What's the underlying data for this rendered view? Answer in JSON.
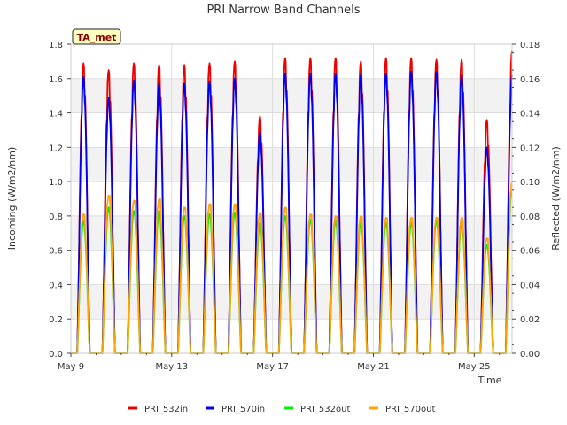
{
  "chart_data": {
    "type": "line",
    "title": "PRI Narrow Band Channels",
    "xlabel": "Time",
    "ylabel_left": "Incoming (W/m2/nm)",
    "ylabel_right": "Reflected (W/m2/nm)",
    "annotation": "TA_met",
    "x_range_days": [
      0,
      17.5
    ],
    "ylim_left": [
      0.0,
      1.8
    ],
    "ylim_right": [
      0.0,
      0.18
    ],
    "x_ticks": [
      {
        "day": 0,
        "label": "May 9"
      },
      {
        "day": 4,
        "label": "May 13"
      },
      {
        "day": 8,
        "label": "May 17"
      },
      {
        "day": 12,
        "label": "May 21"
      },
      {
        "day": 16,
        "label": "May 25"
      }
    ],
    "y_ticks_left": [
      "0.0",
      "0.2",
      "0.4",
      "0.6",
      "0.8",
      "1.0",
      "1.2",
      "1.4",
      "1.6",
      "1.8"
    ],
    "y_ticks_right": [
      "0.00",
      "0.02",
      "0.04",
      "0.06",
      "0.08",
      "0.10",
      "0.12",
      "0.14",
      "0.16",
      "0.18"
    ],
    "days": [
      "May 9",
      "May 10",
      "May 11",
      "May 12",
      "May 13",
      "May 14",
      "May 15",
      "May 16",
      "May 17",
      "May 18",
      "May 19",
      "May 20",
      "May 21",
      "May 22",
      "May 23",
      "May 24",
      "May 25",
      "May 26"
    ],
    "series": [
      {
        "name": "PRI_532in",
        "color": "#ee0000",
        "axis": "left",
        "daily_peak": [
          1.69,
          1.65,
          1.69,
          1.68,
          1.68,
          1.69,
          1.7,
          1.38,
          1.72,
          1.72,
          1.72,
          1.7,
          1.72,
          1.72,
          1.71,
          1.71,
          1.36,
          1.76
        ]
      },
      {
        "name": "PRI_570in",
        "color": "#0000ee",
        "axis": "left",
        "daily_peak": [
          1.61,
          1.49,
          1.59,
          1.57,
          1.57,
          1.58,
          1.6,
          1.29,
          1.63,
          1.63,
          1.63,
          1.62,
          1.63,
          1.64,
          1.64,
          1.62,
          1.2,
          1.62
        ]
      },
      {
        "name": "PRI_532out",
        "color": "#00ee00",
        "axis": "right",
        "daily_peak": [
          0.077,
          0.085,
          0.083,
          0.083,
          0.08,
          0.081,
          0.082,
          0.076,
          0.08,
          0.078,
          0.077,
          0.077,
          0.076,
          0.076,
          0.077,
          0.076,
          0.063,
          0.098
        ]
      },
      {
        "name": "PRI_570out",
        "color": "#ffa500",
        "axis": "right",
        "daily_peak": [
          0.081,
          0.092,
          0.089,
          0.09,
          0.085,
          0.087,
          0.087,
          0.082,
          0.085,
          0.081,
          0.08,
          0.08,
          0.079,
          0.079,
          0.079,
          0.079,
          0.067,
          0.1
        ]
      }
    ],
    "legend_position": "bottom"
  }
}
